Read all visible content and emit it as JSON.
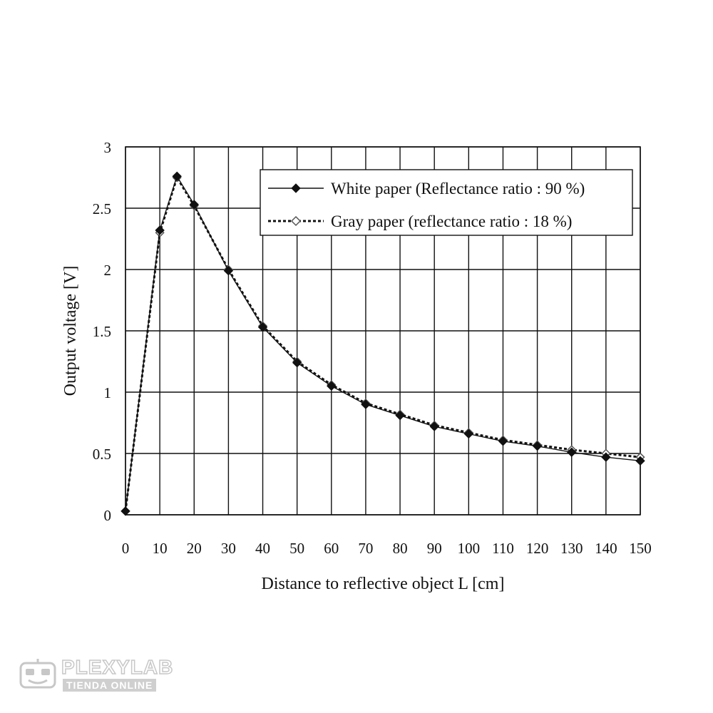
{
  "chart_data": {
    "type": "line",
    "xlabel": "Distance to reflective object L [cm]",
    "ylabel": "Output voltage [V]",
    "xlim": [
      0,
      150
    ],
    "ylim": [
      0,
      3
    ],
    "grid": true,
    "x_ticks": [
      0,
      10,
      20,
      30,
      40,
      50,
      60,
      70,
      80,
      90,
      100,
      110,
      120,
      130,
      140,
      150
    ],
    "x_tick_labels": [
      "0",
      "10",
      "20",
      "30",
      "40",
      "50",
      "60",
      "70",
      "80",
      "90",
      "100",
      "110",
      "120",
      "130",
      "140",
      "150"
    ],
    "y_ticks": [
      0,
      0.5,
      1,
      1.5,
      2,
      2.5,
      3
    ],
    "y_tick_labels": [
      "0",
      "0.5",
      "1",
      "1.5",
      "2",
      "2.5",
      "3"
    ],
    "legend_position": "top-right",
    "series": [
      {
        "name": "White paper (Reflectance ratio : 90 %)",
        "style": "solid",
        "marker": "filled-diamond",
        "x": [
          0,
          10,
          15,
          20,
          30,
          40,
          50,
          60,
          70,
          80,
          90,
          100,
          110,
          120,
          130,
          140,
          150
        ],
        "values": [
          0.03,
          2.32,
          2.76,
          2.53,
          1.99,
          1.53,
          1.24,
          1.05,
          0.9,
          0.81,
          0.72,
          0.66,
          0.6,
          0.56,
          0.51,
          0.47,
          0.44
        ]
      },
      {
        "name": "Gray paper (reflectance ratio : 18 %)",
        "style": "dotted",
        "marker": "hollow-diamond",
        "x": [
          0,
          10,
          15,
          20,
          30,
          40,
          50,
          60,
          70,
          80,
          90,
          100,
          110,
          120,
          130,
          140,
          150
        ],
        "values": [
          0.03,
          2.3,
          2.75,
          2.52,
          2.0,
          1.54,
          1.25,
          1.06,
          0.91,
          0.82,
          0.73,
          0.67,
          0.61,
          0.57,
          0.53,
          0.5,
          0.47
        ]
      }
    ],
    "colors": {
      "line": "#111111",
      "grid": "#111111",
      "hollow_fill": "#ffffff"
    }
  },
  "watermark": {
    "title": "PLEXYLAB",
    "subtitle": "TIENDA ONLINE",
    "logo_icon": "robot-face-icon"
  }
}
